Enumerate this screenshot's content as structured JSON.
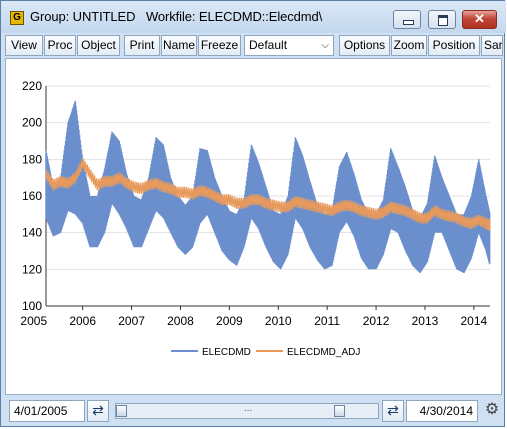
{
  "window": {
    "icon_letter": "G",
    "title": "Group: UNTITLED   Workfile: ELECDMD::Elecdmd\\"
  },
  "toolbar": {
    "buttons": [
      "View",
      "Proc",
      "Object",
      "Print",
      "Name",
      "Freeze",
      "Options",
      "Zoom",
      "Position",
      "Sar"
    ],
    "dropdown_value": "Default"
  },
  "chart_data": {
    "type": "line",
    "x_tick_labels": [
      "2005",
      "2006",
      "2007",
      "2008",
      "2009",
      "2010",
      "2011",
      "2012",
      "2013",
      "2014"
    ],
    "y_tick_labels": [
      "100",
      "120",
      "140",
      "160",
      "180",
      "200",
      "220"
    ],
    "ylim": [
      100,
      220
    ],
    "xlim": [
      2005.25,
      2014.33
    ],
    "grid": true,
    "legend_placement": "bottom",
    "series": [
      {
        "name": "ELECDMD",
        "color": "#6a8fcc",
        "type": "band",
        "x": [
          2005.25,
          2005.4,
          2005.55,
          2005.7,
          2005.85,
          2006.0,
          2006.15,
          2006.3,
          2006.45,
          2006.6,
          2006.75,
          2006.9,
          2007.05,
          2007.2,
          2007.35,
          2007.5,
          2007.65,
          2007.8,
          2007.95,
          2008.1,
          2008.25,
          2008.4,
          2008.55,
          2008.7,
          2008.85,
          2009.0,
          2009.15,
          2009.3,
          2009.45,
          2009.6,
          2009.75,
          2009.9,
          2010.05,
          2010.2,
          2010.35,
          2010.5,
          2010.65,
          2010.8,
          2010.95,
          2011.1,
          2011.25,
          2011.4,
          2011.55,
          2011.7,
          2011.85,
          2012.0,
          2012.15,
          2012.3,
          2012.45,
          2012.6,
          2012.75,
          2012.9,
          2013.05,
          2013.2,
          2013.35,
          2013.5,
          2013.65,
          2013.8,
          2013.95,
          2014.1,
          2014.25,
          2014.33
        ],
        "low": [
          148,
          138,
          140,
          152,
          150,
          145,
          132,
          132,
          140,
          156,
          150,
          142,
          132,
          132,
          142,
          152,
          148,
          140,
          132,
          128,
          132,
          145,
          150,
          140,
          130,
          125,
          122,
          132,
          148,
          142,
          132,
          124,
          120,
          128,
          148,
          142,
          132,
          125,
          120,
          122,
          140,
          146,
          138,
          126,
          120,
          120,
          128,
          142,
          140,
          130,
          122,
          118,
          124,
          140,
          140,
          130,
          120,
          118,
          126,
          140,
          130,
          122
        ],
        "high": [
          185,
          165,
          170,
          200,
          212,
          180,
          160,
          160,
          175,
          195,
          190,
          172,
          160,
          158,
          170,
          192,
          188,
          170,
          160,
          155,
          160,
          186,
          185,
          170,
          160,
          152,
          150,
          158,
          188,
          178,
          165,
          152,
          150,
          160,
          192,
          182,
          168,
          155,
          150,
          152,
          176,
          184,
          172,
          158,
          150,
          150,
          158,
          186,
          176,
          165,
          152,
          148,
          156,
          182,
          170,
          160,
          150,
          150,
          160,
          180,
          160,
          150
        ]
      },
      {
        "name": "ELECDMD_ADJ",
        "color": "#e89a5c",
        "type": "line",
        "x": [
          2005.25,
          2005.4,
          2005.55,
          2005.7,
          2005.85,
          2006.0,
          2006.15,
          2006.3,
          2006.45,
          2006.6,
          2006.75,
          2006.9,
          2007.05,
          2007.2,
          2007.35,
          2007.5,
          2007.65,
          2007.8,
          2007.95,
          2008.1,
          2008.25,
          2008.4,
          2008.55,
          2008.7,
          2008.85,
          2009.0,
          2009.15,
          2009.3,
          2009.45,
          2009.6,
          2009.75,
          2009.9,
          2010.05,
          2010.2,
          2010.35,
          2010.5,
          2010.65,
          2010.8,
          2010.95,
          2011.1,
          2011.25,
          2011.4,
          2011.55,
          2011.7,
          2011.85,
          2012.0,
          2012.15,
          2012.3,
          2012.45,
          2012.6,
          2012.75,
          2012.9,
          2013.05,
          2013.2,
          2013.35,
          2013.5,
          2013.65,
          2013.8,
          2013.95,
          2014.1,
          2014.25,
          2014.33
        ],
        "values": [
          172,
          166,
          168,
          167,
          170,
          178,
          172,
          166,
          168,
          168,
          170,
          167,
          165,
          164,
          166,
          167,
          165,
          164,
          162,
          162,
          161,
          163,
          162,
          160,
          158,
          158,
          156,
          156,
          158,
          158,
          156,
          155,
          154,
          154,
          157,
          156,
          155,
          154,
          153,
          152,
          154,
          155,
          154,
          152,
          151,
          150,
          151,
          154,
          153,
          152,
          150,
          148,
          148,
          152,
          150,
          149,
          148,
          146,
          145,
          147,
          145,
          144
        ]
      }
    ]
  },
  "status": {
    "start_date": "4/01/2005",
    "end_date": "4/30/2014",
    "slider_grip": "..."
  }
}
